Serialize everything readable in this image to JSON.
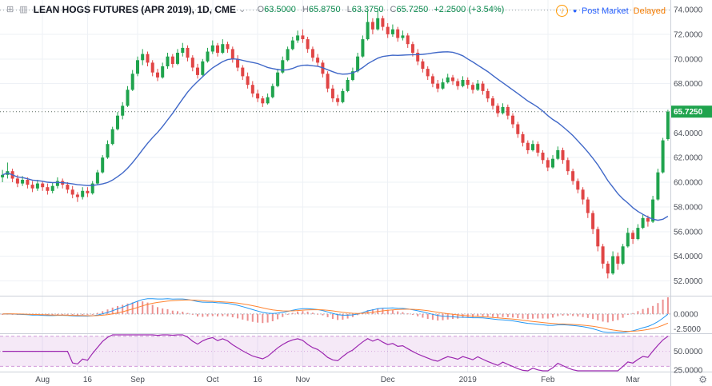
{
  "header": {
    "title": "LEAN HOGS FUTURES (APR 2019), 1D, CME",
    "ohlc_pairs": [
      {
        "label": "O",
        "value": "63.5000"
      },
      {
        "label": "H",
        "value": "65.8750"
      },
      {
        "label": "L",
        "value": "63.3750"
      },
      {
        "label": "C",
        "value": "65.7250"
      }
    ],
    "change": "+2.2500 (+3.54%)",
    "market_status": "Post Market",
    "delay_status": "Delayed"
  },
  "chart_data": {
    "type": "candlestick",
    "title": "LEAN HOGS FUTURES (APR 2019), 1D, CME",
    "interval": "1D",
    "exchange": "CME",
    "last_price": 65.725,
    "high_line": 73.95,
    "ylim": [
      50.8,
      74.78
    ],
    "price_axis_ticks": [
      74,
      72,
      70,
      68,
      64,
      62,
      60,
      58,
      56,
      54,
      52
    ],
    "time_ticks": [
      {
        "label": "Aug",
        "index": 8
      },
      {
        "label": "16",
        "index": 17
      },
      {
        "label": "Sep",
        "index": 27
      },
      {
        "label": "Oct",
        "index": 42
      },
      {
        "label": "16",
        "index": 51
      },
      {
        "label": "Nov",
        "index": 60
      },
      {
        "label": "Dec",
        "index": 77
      },
      {
        "label": "2019",
        "index": 93
      },
      {
        "label": "Feb",
        "index": 109
      },
      {
        "label": "Mar",
        "index": 126
      }
    ],
    "overlays": {
      "sma_period": 20,
      "sma_color": "#4068c8"
    },
    "indicators": {
      "macd": {
        "fast": 12,
        "slow": 26,
        "signal": 9,
        "ylim": [
          -3.2,
          2.9
        ],
        "ticks": [
          0,
          -2.5
        ],
        "line_color": "#2196f3",
        "signal_color": "#ff8330",
        "hist_color": "#ec9090"
      },
      "rsi": {
        "period": 14,
        "ylim": [
          23,
          73
        ],
        "ticks": [
          50,
          25
        ],
        "band": [
          30,
          70
        ],
        "line_color": "#9c27b0",
        "band_fill": "rgba(156,39,176,0.10)",
        "band_line": "rgba(156,39,176,0.45)",
        "mid_line": "rgba(156,39,176,0.35)"
      }
    },
    "colors": {
      "up": "#1fa34d",
      "down": "#e04545",
      "grid": "#eef1f6",
      "separator": "#ccd0d9",
      "axis_text": "#4a4e57",
      "badge": "#1fa34d",
      "last_price_line": "#5c6a61",
      "high_line_color": "#9aa0a6"
    },
    "candles": [
      [
        60.4,
        61.0,
        60.0,
        60.6
      ],
      [
        60.6,
        61.6,
        60.3,
        60.9
      ],
      [
        60.9,
        61.1,
        60.0,
        60.3
      ],
      [
        60.3,
        60.6,
        59.6,
        59.9
      ],
      [
        59.9,
        60.5,
        59.7,
        60.2
      ],
      [
        60.2,
        60.4,
        59.5,
        59.8
      ],
      [
        59.8,
        60.1,
        59.2,
        59.5
      ],
      [
        59.5,
        60.2,
        59.3,
        59.9
      ],
      [
        59.9,
        60.1,
        59.3,
        59.6
      ],
      [
        59.6,
        59.9,
        59.0,
        59.3
      ],
      [
        59.3,
        60.0,
        59.1,
        59.7
      ],
      [
        59.7,
        60.4,
        59.5,
        60.1
      ],
      [
        60.1,
        60.3,
        59.5,
        59.8
      ],
      [
        59.8,
        60.0,
        59.1,
        59.4
      ],
      [
        59.4,
        59.7,
        58.7,
        59.0
      ],
      [
        59.0,
        59.2,
        58.4,
        58.8
      ],
      [
        58.8,
        59.6,
        58.6,
        59.3
      ],
      [
        59.3,
        59.6,
        58.8,
        59.1
      ],
      [
        59.1,
        60.1,
        59.0,
        59.9
      ],
      [
        59.9,
        61.0,
        59.8,
        60.8
      ],
      [
        60.8,
        62.2,
        60.7,
        62.0
      ],
      [
        62.0,
        63.4,
        61.9,
        63.1
      ],
      [
        63.1,
        64.5,
        63.0,
        64.3
      ],
      [
        64.3,
        65.7,
        64.2,
        65.4
      ],
      [
        65.4,
        66.5,
        65.1,
        66.2
      ],
      [
        66.2,
        67.8,
        66.1,
        67.5
      ],
      [
        67.5,
        69.1,
        67.4,
        68.8
      ],
      [
        68.8,
        70.2,
        68.6,
        69.9
      ],
      [
        69.9,
        70.8,
        69.5,
        70.4
      ],
      [
        70.4,
        70.6,
        69.4,
        69.7
      ],
      [
        69.7,
        69.9,
        68.6,
        68.9
      ],
      [
        68.9,
        69.2,
        68.2,
        68.5
      ],
      [
        68.5,
        69.7,
        68.4,
        69.4
      ],
      [
        69.4,
        70.5,
        69.2,
        70.2
      ],
      [
        70.2,
        70.4,
        69.3,
        69.6
      ],
      [
        69.6,
        70.8,
        69.5,
        70.5
      ],
      [
        70.5,
        71.3,
        70.2,
        70.9
      ],
      [
        70.9,
        71.1,
        69.8,
        70.1
      ],
      [
        70.1,
        70.3,
        69.0,
        69.3
      ],
      [
        69.3,
        69.6,
        68.4,
        68.7
      ],
      [
        68.7,
        70.0,
        68.6,
        69.8
      ],
      [
        69.8,
        70.9,
        69.7,
        70.6
      ],
      [
        70.6,
        71.5,
        70.4,
        71.1
      ],
      [
        71.1,
        71.3,
        70.2,
        70.5
      ],
      [
        70.5,
        71.6,
        70.4,
        71.2
      ],
      [
        71.2,
        71.4,
        70.5,
        70.8
      ],
      [
        70.8,
        71.0,
        69.7,
        70.0
      ],
      [
        70.0,
        70.3,
        69.0,
        69.3
      ],
      [
        69.3,
        69.5,
        68.3,
        68.6
      ],
      [
        68.6,
        68.9,
        67.6,
        67.9
      ],
      [
        67.9,
        68.2,
        66.9,
        67.2
      ],
      [
        67.2,
        67.5,
        66.5,
        66.8
      ],
      [
        66.8,
        67.0,
        66.1,
        66.4
      ],
      [
        66.4,
        67.2,
        66.3,
        66.9
      ],
      [
        66.9,
        68.0,
        66.8,
        67.8
      ],
      [
        67.8,
        69.2,
        67.7,
        68.9
      ],
      [
        68.9,
        70.2,
        68.8,
        69.9
      ],
      [
        69.9,
        71.0,
        69.8,
        70.8
      ],
      [
        70.8,
        71.8,
        70.7,
        71.5
      ],
      [
        71.5,
        72.3,
        71.3,
        71.9
      ],
      [
        71.9,
        72.4,
        71.3,
        71.6
      ],
      [
        71.6,
        71.8,
        70.5,
        70.8
      ],
      [
        70.8,
        71.0,
        69.8,
        70.1
      ],
      [
        70.1,
        70.4,
        69.4,
        69.7
      ],
      [
        69.7,
        69.9,
        68.5,
        68.8
      ],
      [
        68.8,
        69.0,
        67.3,
        67.6
      ],
      [
        67.6,
        67.9,
        66.5,
        66.8
      ],
      [
        66.8,
        67.1,
        66.2,
        66.5
      ],
      [
        66.5,
        67.6,
        66.4,
        67.4
      ],
      [
        67.4,
        68.5,
        67.3,
        68.3
      ],
      [
        68.3,
        69.3,
        68.2,
        69.0
      ],
      [
        69.0,
        70.5,
        68.9,
        70.2
      ],
      [
        70.2,
        71.9,
        70.1,
        71.6
      ],
      [
        71.6,
        73.9,
        71.5,
        73.0
      ],
      [
        73.0,
        73.3,
        72.0,
        72.4
      ],
      [
        72.4,
        73.95,
        72.3,
        73.3
      ],
      [
        73.3,
        73.5,
        72.3,
        72.6
      ],
      [
        72.6,
        72.9,
        71.7,
        72.0
      ],
      [
        72.0,
        72.8,
        71.8,
        72.4
      ],
      [
        72.4,
        72.6,
        71.4,
        71.7
      ],
      [
        71.7,
        72.3,
        71.5,
        71.9
      ],
      [
        71.9,
        72.1,
        70.9,
        71.2
      ],
      [
        71.2,
        71.4,
        70.2,
        70.5
      ],
      [
        70.5,
        70.8,
        69.5,
        69.8
      ],
      [
        69.8,
        70.0,
        68.9,
        69.2
      ],
      [
        69.2,
        69.4,
        68.3,
        68.6
      ],
      [
        68.6,
        68.8,
        67.7,
        68.0
      ],
      [
        68.0,
        68.3,
        67.3,
        67.6
      ],
      [
        67.6,
        68.4,
        67.5,
        68.1
      ],
      [
        68.1,
        68.8,
        68.0,
        68.5
      ],
      [
        68.5,
        68.7,
        67.9,
        68.2
      ],
      [
        68.2,
        68.4,
        67.5,
        67.8
      ],
      [
        67.8,
        68.6,
        67.7,
        68.3
      ],
      [
        68.3,
        68.5,
        67.6,
        67.9
      ],
      [
        67.9,
        68.1,
        67.2,
        67.5
      ],
      [
        67.5,
        68.3,
        67.4,
        68.0
      ],
      [
        68.0,
        68.2,
        67.1,
        67.4
      ],
      [
        67.4,
        67.6,
        66.5,
        66.8
      ],
      [
        66.8,
        67.0,
        65.9,
        66.2
      ],
      [
        66.2,
        66.4,
        65.3,
        65.6
      ],
      [
        65.6,
        66.4,
        65.5,
        66.1
      ],
      [
        66.1,
        66.3,
        65.1,
        65.4
      ],
      [
        65.4,
        65.6,
        64.4,
        64.7
      ],
      [
        64.7,
        64.9,
        63.6,
        63.9
      ],
      [
        63.9,
        64.1,
        62.9,
        63.2
      ],
      [
        63.2,
        63.4,
        62.3,
        62.6
      ],
      [
        62.6,
        63.4,
        62.5,
        63.1
      ],
      [
        63.1,
        63.3,
        62.1,
        62.4
      ],
      [
        62.4,
        62.6,
        61.5,
        61.8
      ],
      [
        61.8,
        62.0,
        60.9,
        61.2
      ],
      [
        61.2,
        62.2,
        61.1,
        61.9
      ],
      [
        61.9,
        62.9,
        61.8,
        62.6
      ],
      [
        62.6,
        62.8,
        61.5,
        61.8
      ],
      [
        61.8,
        62.0,
        60.6,
        60.9
      ],
      [
        60.9,
        61.1,
        59.8,
        60.1
      ],
      [
        60.1,
        60.3,
        59.1,
        59.4
      ],
      [
        59.4,
        59.6,
        58.2,
        58.6
      ],
      [
        58.6,
        58.8,
        57.1,
        57.5
      ],
      [
        57.5,
        57.7,
        55.8,
        56.2
      ],
      [
        56.2,
        56.4,
        54.4,
        54.8
      ],
      [
        54.8,
        55.0,
        53.0,
        53.4
      ],
      [
        53.4,
        53.6,
        52.2,
        52.6
      ],
      [
        52.6,
        54.4,
        52.5,
        54.0
      ],
      [
        54.0,
        54.3,
        52.9,
        53.4
      ],
      [
        53.4,
        55.0,
        53.3,
        54.8
      ],
      [
        54.8,
        56.3,
        54.7,
        55.9
      ],
      [
        55.9,
        56.1,
        55.0,
        55.4
      ],
      [
        55.4,
        56.6,
        55.3,
        56.3
      ],
      [
        56.3,
        57.4,
        56.2,
        57.1
      ],
      [
        57.1,
        57.3,
        56.4,
        56.8
      ],
      [
        56.8,
        58.9,
        56.7,
        58.6
      ],
      [
        58.6,
        61.1,
        58.5,
        60.8
      ],
      [
        60.8,
        63.6,
        60.7,
        63.4
      ],
      [
        63.5,
        65.875,
        63.375,
        65.725
      ]
    ]
  }
}
